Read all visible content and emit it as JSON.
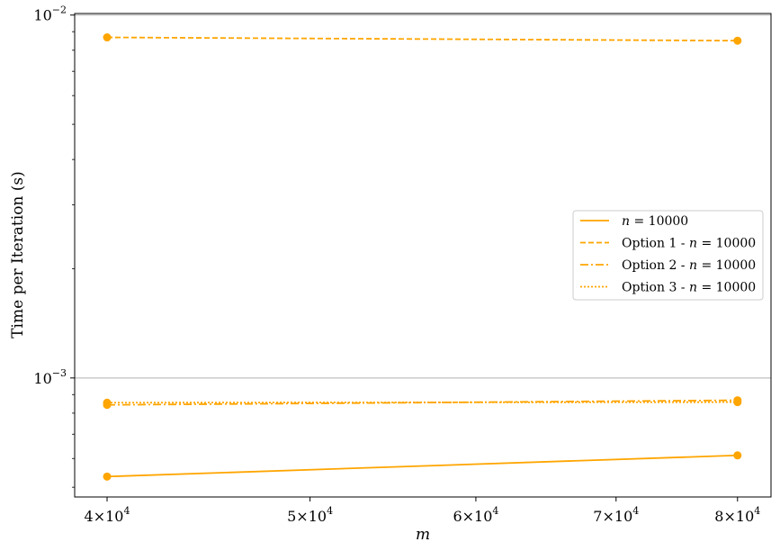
{
  "chart_data": {
    "type": "line",
    "xscale": "log",
    "yscale": "log",
    "xlabel": "m",
    "ylabel": "Time per Iteration (s)",
    "xlim": [
      38600,
      83000
    ],
    "ylim": [
      0.00047,
      0.0101
    ],
    "grid": "major y only",
    "legend_position": "center-right",
    "color": "#ffa500",
    "x_ticks": [
      {
        "value": 40000,
        "mantissa": "4",
        "times": "×",
        "base": "10",
        "exp": "4"
      },
      {
        "value": 50000,
        "mantissa": "5",
        "times": "×",
        "base": "10",
        "exp": "4"
      },
      {
        "value": 60000,
        "mantissa": "6",
        "times": "×",
        "base": "10",
        "exp": "4"
      },
      {
        "value": 70000,
        "mantissa": "7",
        "times": "×",
        "base": "10",
        "exp": "4"
      },
      {
        "value": 80000,
        "mantissa": "8",
        "times": "×",
        "base": "10",
        "exp": "4"
      }
    ],
    "y_ticks": [
      {
        "value": 0.001,
        "base": "10",
        "exp": "−3"
      },
      {
        "value": 0.01,
        "base": "10",
        "exp": "−2"
      }
    ],
    "series": [
      {
        "name_prefix": "",
        "name_var": "n",
        "name_eq": " = 10000",
        "dash": "solid",
        "x": [
          40000,
          80000
        ],
        "values": [
          0.000535,
          0.000612
        ]
      },
      {
        "name_prefix": "Option 1 - ",
        "name_var": "n",
        "name_eq": " = 10000",
        "dash": "dashed",
        "x": [
          40000,
          80000
        ],
        "values": [
          0.00868,
          0.0085
        ]
      },
      {
        "name_prefix": "Option 2 - ",
        "name_var": "n",
        "name_eq": " = 10000",
        "dash": "dashdot",
        "x": [
          40000,
          80000
        ],
        "values": [
          0.000843,
          0.000868
        ]
      },
      {
        "name_prefix": "Option 3 - ",
        "name_var": "n",
        "name_eq": " = 10000",
        "dash": "dotted",
        "x": [
          40000,
          80000
        ],
        "values": [
          0.000855,
          0.000858
        ]
      }
    ]
  }
}
